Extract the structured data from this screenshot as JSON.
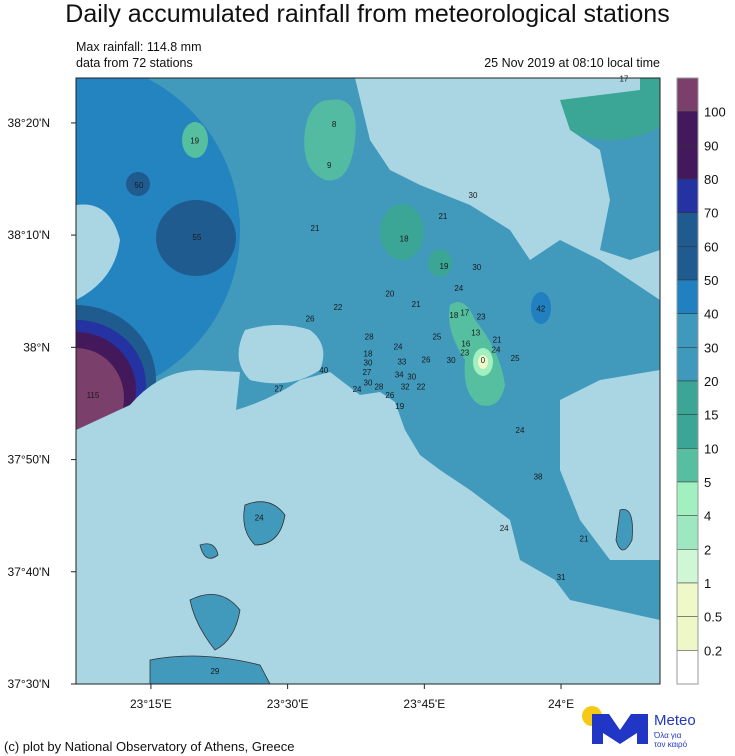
{
  "header": {
    "title": "Daily accumulated rainfall from meteorological stations",
    "max_rainfall": "Max rainfall: 114.8 mm",
    "station_count": "data from 72 stations",
    "timestamp": "25 Nov 2019 at 08:10 local time"
  },
  "map": {
    "extent": {
      "lon": [
        23.113,
        24.181
      ],
      "lat": [
        37.5,
        38.4
      ]
    },
    "lon_ticks": [
      {
        "value": 23.25,
        "label": "23°15'E"
      },
      {
        "value": 23.5,
        "label": "23°30'E"
      },
      {
        "value": 23.75,
        "label": "23°45'E"
      },
      {
        "value": 24.0,
        "label": "24°E"
      }
    ],
    "lat_ticks": [
      {
        "value": 38.3333,
        "label": "38°20'N"
      },
      {
        "value": 38.1667,
        "label": "38°10'N"
      },
      {
        "value": 38.0,
        "label": "38°N"
      },
      {
        "value": 37.8333,
        "label": "37°50'N"
      },
      {
        "value": 37.6667,
        "label": "37°40'N"
      },
      {
        "value": 37.5,
        "label": "37°30'N"
      }
    ],
    "sea_color": "#aad6e4",
    "land_color": "#4199bc",
    "stations": [
      {
        "lon": 23.33,
        "lat": 38.307,
        "v": "19"
      },
      {
        "lon": 23.228,
        "lat": 38.241,
        "v": "50"
      },
      {
        "lon": 23.334,
        "lat": 38.164,
        "v": "55"
      },
      {
        "lon": 23.585,
        "lat": 38.332,
        "v": "8"
      },
      {
        "lon": 23.576,
        "lat": 38.271,
        "v": "9"
      },
      {
        "lon": 23.55,
        "lat": 38.177,
        "v": "21"
      },
      {
        "lon": 23.713,
        "lat": 38.162,
        "v": "18"
      },
      {
        "lon": 23.839,
        "lat": 38.226,
        "v": "30"
      },
      {
        "lon": 23.784,
        "lat": 38.195,
        "v": "21"
      },
      {
        "lon": 23.786,
        "lat": 38.121,
        "v": "19"
      },
      {
        "lon": 23.846,
        "lat": 38.119,
        "v": "30"
      },
      {
        "lon": 23.813,
        "lat": 38.088,
        "v": "24"
      },
      {
        "lon": 23.687,
        "lat": 38.08,
        "v": "20"
      },
      {
        "lon": 23.735,
        "lat": 38.064,
        "v": "21"
      },
      {
        "lon": 23.592,
        "lat": 38.06,
        "v": "22"
      },
      {
        "lon": 23.541,
        "lat": 38.043,
        "v": "26"
      },
      {
        "lon": 23.804,
        "lat": 38.048,
        "v": "18"
      },
      {
        "lon": 23.813,
        "lat": 38.052,
        "v": "17"
      },
      {
        "lon": 23.854,
        "lat": 38.046,
        "v": "23"
      },
      {
        "lon": 23.773,
        "lat": 38.016,
        "v": "25"
      },
      {
        "lon": 23.649,
        "lat": 38.016,
        "v": "28"
      },
      {
        "lon": 23.702,
        "lat": 38.001,
        "v": "24"
      },
      {
        "lon": 23.844,
        "lat": 38.022,
        "v": "13"
      },
      {
        "lon": 23.826,
        "lat": 38.006,
        "v": "16"
      },
      {
        "lon": 23.824,
        "lat": 38.001,
        "v": "23"
      },
      {
        "lon": 23.883,
        "lat": 38.012,
        "v": "21"
      },
      {
        "lon": 23.881,
        "lat": 37.997,
        "v": "24"
      },
      {
        "lon": 23.647,
        "lat": 37.991,
        "v": "18"
      },
      {
        "lon": 23.647,
        "lat": 37.982,
        "v": "30"
      },
      {
        "lon": 23.709,
        "lat": 37.979,
        "v": "33"
      },
      {
        "lon": 23.753,
        "lat": 37.982,
        "v": "26"
      },
      {
        "lon": 23.799,
        "lat": 37.981,
        "v": "30"
      },
      {
        "lon": 23.857,
        "lat": 37.981,
        "v": "0"
      },
      {
        "lon": 23.916,
        "lat": 37.984,
        "v": "25"
      },
      {
        "lon": 23.963,
        "lat": 38.058,
        "v": "42"
      },
      {
        "lon": 23.645,
        "lat": 37.963,
        "v": "27"
      },
      {
        "lon": 23.566,
        "lat": 37.966,
        "v": "40"
      },
      {
        "lon": 23.704,
        "lat": 37.96,
        "v": "34"
      },
      {
        "lon": 23.727,
        "lat": 37.957,
        "v": "30"
      },
      {
        "lon": 23.715,
        "lat": 37.951,
        "v": "32"
      },
      {
        "lon": 23.744,
        "lat": 37.946,
        "v": "22"
      },
      {
        "lon": 23.647,
        "lat": 37.948,
        "v": "30"
      },
      {
        "lon": 23.627,
        "lat": 37.938,
        "v": "24"
      },
      {
        "lon": 23.667,
        "lat": 37.942,
        "v": "28"
      },
      {
        "lon": 23.687,
        "lat": 37.929,
        "v": "26"
      },
      {
        "lon": 23.705,
        "lat": 37.917,
        "v": "19"
      },
      {
        "lon": 23.484,
        "lat": 37.939,
        "v": "27"
      },
      {
        "lon": 23.925,
        "lat": 37.877,
        "v": "24"
      },
      {
        "lon": 23.958,
        "lat": 37.808,
        "v": "38"
      },
      {
        "lon": 23.896,
        "lat": 37.732,
        "v": "24"
      },
      {
        "lon": 24.042,
        "lat": 37.716,
        "v": "21"
      },
      {
        "lon": 24.0,
        "lat": 37.659,
        "v": "31"
      },
      {
        "lon": 23.448,
        "lat": 37.747,
        "v": "24"
      },
      {
        "lon": 23.367,
        "lat": 37.519,
        "v": "29"
      },
      {
        "lon": 23.144,
        "lat": 37.929,
        "v": "115"
      },
      {
        "lon": 24.115,
        "lat": 38.399,
        "v": "17"
      }
    ]
  },
  "colorbar": {
    "labels": [
      "100",
      "90",
      "80",
      "70",
      "60",
      "50",
      "40",
      "30",
      "20",
      "15",
      "10",
      "5",
      "4",
      "2",
      "1",
      "0.5",
      "0.2"
    ],
    "colors": [
      "#7b3f6c",
      "#44195b",
      "#44195b",
      "#2432a2",
      "#1f5b8f",
      "#1f5b8f",
      "#2080c0",
      "#3f99bd",
      "#3f99bd",
      "#3ba596",
      "#3ba596",
      "#56bfa0",
      "#a2efbf",
      "#9de8c1",
      "#cff7d6",
      "#eef8c9",
      "#eef7c6",
      "#ffffff"
    ]
  },
  "footer": {
    "credit": "(c) plot by National Observatory of Athens, Greece",
    "logo_name": "Meteo",
    "logo_tagline_1": "Όλα για",
    "logo_tagline_2": "τον καιρό"
  }
}
